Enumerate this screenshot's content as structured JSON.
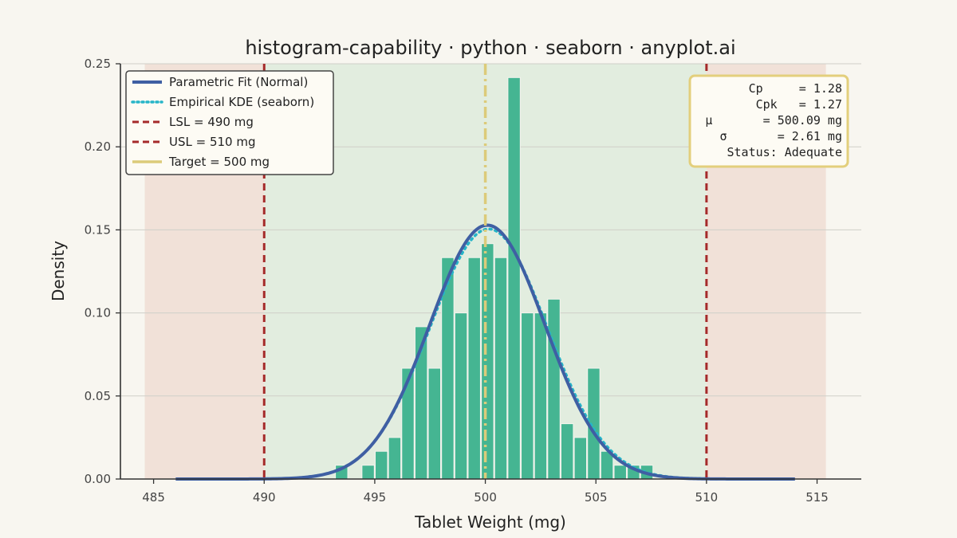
{
  "chart_data": {
    "type": "bar",
    "title": "histogram-capability · python · seaborn · anyplot.ai",
    "xlabel": "Tablet Weight (mg)",
    "ylabel": "Density",
    "xlim": [
      483.5,
      517
    ],
    "ylim": [
      0,
      0.25
    ],
    "xticks": [
      485,
      490,
      495,
      500,
      505,
      510,
      515
    ],
    "yticks": [
      0.0,
      0.05,
      0.1,
      0.15,
      0.2,
      0.25
    ],
    "ytick_labels": [
      "0.00",
      "0.05",
      "0.10",
      "0.15",
      "0.20",
      "0.25"
    ],
    "grid": "horizontal",
    "bin_width": 0.6,
    "bins": [
      {
        "start": 493.2,
        "density": 0.0083
      },
      {
        "start": 493.8,
        "density": 0.0
      },
      {
        "start": 494.4,
        "density": 0.0083
      },
      {
        "start": 495.0,
        "density": 0.0167
      },
      {
        "start": 495.6,
        "density": 0.025
      },
      {
        "start": 496.2,
        "density": 0.0667
      },
      {
        "start": 496.8,
        "density": 0.0917
      },
      {
        "start": 497.4,
        "density": 0.0667
      },
      {
        "start": 498.0,
        "density": 0.1333
      },
      {
        "start": 498.6,
        "density": 0.1
      },
      {
        "start": 499.2,
        "density": 0.1333
      },
      {
        "start": 499.8,
        "density": 0.1417
      },
      {
        "start": 500.4,
        "density": 0.1333
      },
      {
        "start": 501.0,
        "density": 0.2417
      },
      {
        "start": 501.6,
        "density": 0.1
      },
      {
        "start": 502.2,
        "density": 0.1
      },
      {
        "start": 502.8,
        "density": 0.1083
      },
      {
        "start": 503.4,
        "density": 0.0333
      },
      {
        "start": 504.0,
        "density": 0.025
      },
      {
        "start": 504.6,
        "density": 0.0667
      },
      {
        "start": 505.2,
        "density": 0.0167
      },
      {
        "start": 505.8,
        "density": 0.0083
      },
      {
        "start": 506.4,
        "density": 0.0083
      },
      {
        "start": 507.0,
        "density": 0.0083
      }
    ],
    "normal_fit": {
      "mu": 500.09,
      "sigma": 2.61,
      "x_range": [
        486,
        514
      ]
    },
    "kde": {
      "mu": 500.15,
      "sigma": 2.65
    },
    "spec_limits": {
      "lsl": 490,
      "usl": 510,
      "target": 500
    },
    "out_of_spec_shading": [
      [
        484.6,
        490
      ],
      [
        510,
        515.4
      ]
    ],
    "in_spec_shading": [
      490,
      510
    ],
    "legend": {
      "placement": "top-left",
      "entries": [
        {
          "label": "Parametric Fit (Normal)",
          "style": "solid",
          "color": "#3f5fa3"
        },
        {
          "label": "Empirical KDE (seaborn)",
          "style": "dotted",
          "color": "#26b5c8"
        },
        {
          "label": "LSL = 490 mg",
          "style": "dashed",
          "color": "#a52a2a"
        },
        {
          "label": "USL = 510 mg",
          "style": "dashed",
          "color": "#a52a2a"
        },
        {
          "label": "Target = 500 mg",
          "style": "solid",
          "color": "#dccb7a"
        }
      ]
    },
    "stats_box": {
      "placement": "top-right",
      "lines": [
        "Cp     = 1.28",
        "Cpk   = 1.27",
        "μ       = 500.09 mg",
        "σ       = 2.61 mg",
        "Status: Adequate"
      ]
    },
    "colors": {
      "background": "#f8f6f0",
      "bars": "#45b592",
      "fit": "#3f5fa3",
      "kde": "#26b5c8",
      "limits": "#a52a2a",
      "target": "#dccb7a",
      "in_spec_fill": "#dbead9",
      "out_spec_fill": "#efd9d0",
      "stats_border": "#e3cf7c"
    }
  }
}
